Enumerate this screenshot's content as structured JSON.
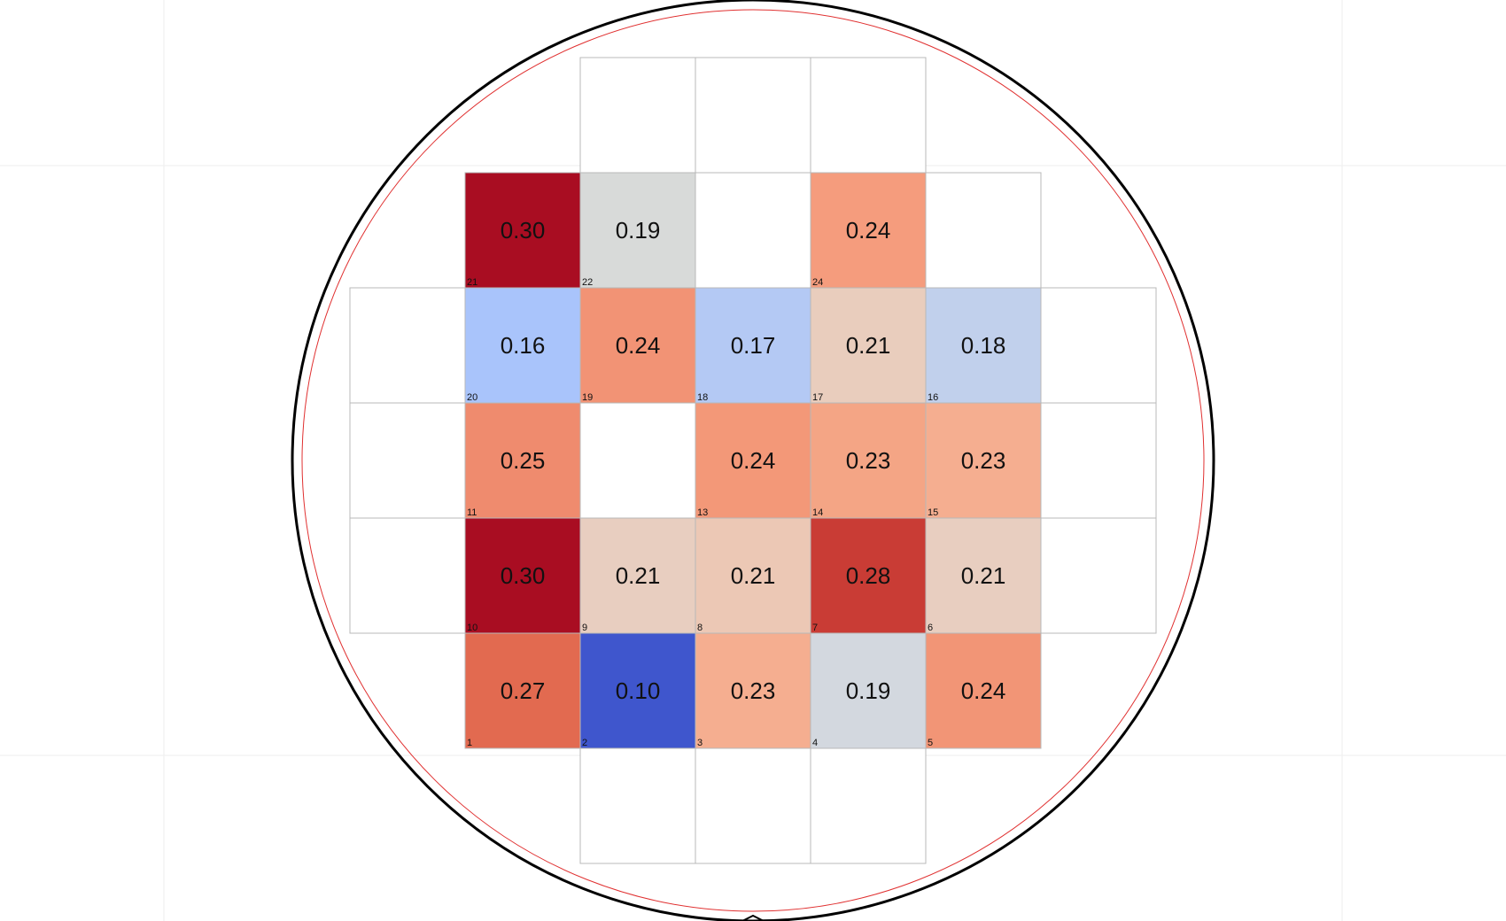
{
  "chart_data": {
    "type": "heatmap",
    "title": "",
    "colormap": "coolwarm",
    "value_range": [
      0.1,
      0.3
    ],
    "grid": {
      "columns": 7,
      "rows": 7
    },
    "empty_frame_cells": [
      {
        "col": 2,
        "row": 0
      },
      {
        "col": 3,
        "row": 0
      },
      {
        "col": 4,
        "row": 0
      },
      {
        "col": 3,
        "row": 1
      },
      {
        "col": 5,
        "row": 1
      },
      {
        "col": 0,
        "row": 2
      },
      {
        "col": 6,
        "row": 2
      },
      {
        "col": 0,
        "row": 3
      },
      {
        "col": 2,
        "row": 3
      },
      {
        "col": 6,
        "row": 3
      },
      {
        "col": 0,
        "row": 4
      },
      {
        "col": 6,
        "row": 4
      },
      {
        "col": 2,
        "row": 6
      },
      {
        "col": 3,
        "row": 6
      },
      {
        "col": 4,
        "row": 6
      }
    ],
    "dies": [
      {
        "id": "1",
        "col": 1,
        "row": 5,
        "value": "0.27",
        "color": "#e26a50"
      },
      {
        "id": "2",
        "col": 2,
        "row": 5,
        "value": "0.10",
        "color": "#3f56cd"
      },
      {
        "id": "3",
        "col": 3,
        "row": 5,
        "value": "0.23",
        "color": "#f5ae90"
      },
      {
        "id": "4",
        "col": 4,
        "row": 5,
        "value": "0.19",
        "color": "#d3d8df"
      },
      {
        "id": "5",
        "col": 5,
        "row": 5,
        "value": "0.24",
        "color": "#f29576"
      },
      {
        "id": "6",
        "col": 5,
        "row": 4,
        "value": "0.21",
        "color": "#e8cec0"
      },
      {
        "id": "7",
        "col": 4,
        "row": 4,
        "value": "0.28",
        "color": "#c93c35"
      },
      {
        "id": "8",
        "col": 3,
        "row": 4,
        "value": "0.21",
        "color": "#ecc8b5"
      },
      {
        "id": "9",
        "col": 2,
        "row": 4,
        "value": "0.21",
        "color": "#e8cec0"
      },
      {
        "id": "10",
        "col": 1,
        "row": 4,
        "value": "0.30",
        "color": "#a90d22"
      },
      {
        "id": "11",
        "col": 1,
        "row": 3,
        "value": "0.25",
        "color": "#ef8b6e"
      },
      {
        "id": "13",
        "col": 3,
        "row": 3,
        "value": "0.24",
        "color": "#f39878"
      },
      {
        "id": "14",
        "col": 4,
        "row": 3,
        "value": "0.23",
        "color": "#f4a585"
      },
      {
        "id": "15",
        "col": 5,
        "row": 3,
        "value": "0.23",
        "color": "#f5ae90"
      },
      {
        "id": "16",
        "col": 5,
        "row": 2,
        "value": "0.18",
        "color": "#c1d0ec"
      },
      {
        "id": "17",
        "col": 4,
        "row": 2,
        "value": "0.21",
        "color": "#e9cdbd"
      },
      {
        "id": "18",
        "col": 3,
        "row": 2,
        "value": "0.17",
        "color": "#b4c9f4"
      },
      {
        "id": "19",
        "col": 2,
        "row": 2,
        "value": "0.24",
        "color": "#f29375"
      },
      {
        "id": "20",
        "col": 1,
        "row": 2,
        "value": "0.16",
        "color": "#a9c4fb"
      },
      {
        "id": "21",
        "col": 1,
        "row": 1,
        "value": "0.30",
        "color": "#a90d22"
      },
      {
        "id": "22",
        "col": 2,
        "row": 1,
        "value": "0.19",
        "color": "#d8dad9"
      },
      {
        "id": "24",
        "col": 4,
        "row": 1,
        "value": "0.24",
        "color": "#f59c7d"
      }
    ]
  },
  "colors": {
    "wafer_outline": "#000000",
    "edge_exclusion_ring": "#e03030",
    "cell_border": "#b8b8b8",
    "background_grid": "#eeeeee"
  }
}
